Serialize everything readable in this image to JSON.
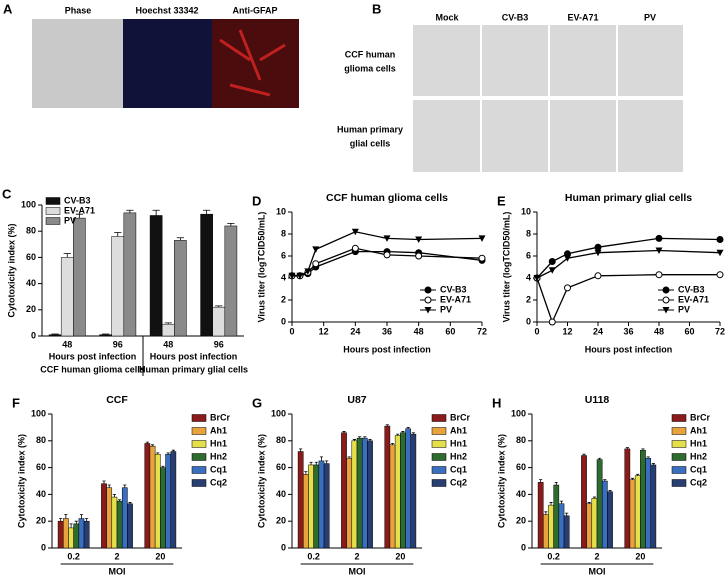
{
  "figure_panels": {
    "A": {
      "label": "A",
      "columns": [
        "Phase",
        "Hoechst 33342",
        "Anti-GFAP"
      ]
    },
    "B": {
      "label": "B",
      "columns": [
        "Mock",
        "CV-B3",
        "EV-A71",
        "PV"
      ],
      "rows": [
        [
          "CCF human",
          "glioma cells"
        ],
        [
          "Human primary",
          "glial cells"
        ]
      ]
    }
  },
  "chart_data": [
    {
      "type": "bar",
      "label": "C",
      "ylabel": "Cytotoxicity index (%)",
      "categories": [
        "48",
        "96",
        "48",
        "96"
      ],
      "group_labels": [
        "Hours post infection",
        "Hours post infection"
      ],
      "groups": [
        "CCF human glioma cells",
        "Human primary glial cells"
      ],
      "ylim": [
        0,
        100
      ],
      "yticks": [
        0,
        20,
        40,
        60,
        80,
        100
      ],
      "legend": "upper left",
      "series": [
        {
          "name": "CV-B3",
          "color": "#111111",
          "values": [
            1,
            1,
            92,
            93
          ],
          "errors": [
            0.5,
            0.5,
            4,
            3
          ]
        },
        {
          "name": "EV-A71",
          "color": "#dddddd",
          "values": [
            60,
            76,
            9,
            22
          ],
          "errors": [
            3,
            3,
            1,
            1
          ]
        },
        {
          "name": "PV",
          "color": "#8a8a8a",
          "values": [
            90,
            94,
            73,
            84
          ],
          "errors": [
            3,
            2,
            2,
            2
          ]
        }
      ]
    },
    {
      "type": "line",
      "label": "D",
      "title": "CCF human glioma cells",
      "xlabel": "Hours post infection",
      "ylabel": "Virus titer (logTCID50/mL)",
      "x": [
        0,
        3,
        6,
        9,
        24,
        36,
        48,
        72
      ],
      "xlim": [
        0,
        72
      ],
      "xticks": [
        0,
        12,
        24,
        36,
        48,
        60,
        72
      ],
      "ylim": [
        0,
        10
      ],
      "yticks": [
        0,
        2,
        4,
        6,
        8,
        10
      ],
      "legend": "lower right",
      "series": [
        {
          "name": "CV-B3",
          "color": "#000000",
          "marker": "filled circle",
          "values": [
            4.2,
            4.2,
            4.4,
            5.0,
            6.4,
            6.4,
            6.3,
            5.6
          ]
        },
        {
          "name": "EV-A71",
          "color": "#000000",
          "marker": "open circle",
          "values": [
            4.2,
            4.2,
            4.5,
            5.3,
            6.7,
            6.1,
            6.0,
            5.8
          ]
        },
        {
          "name": "PV",
          "color": "#000000",
          "marker": "triangle down",
          "values": [
            4.2,
            4.2,
            4.6,
            6.6,
            8.2,
            7.6,
            7.5,
            7.6
          ]
        }
      ]
    },
    {
      "type": "line",
      "label": "E",
      "title": "Human primary glial cells",
      "xlabel": "Hours post infection",
      "ylabel": "Virus titer (logTCID50/mL)",
      "x": [
        0,
        6,
        12,
        24,
        48,
        72
      ],
      "xlim": [
        0,
        72
      ],
      "xticks": [
        0,
        12,
        24,
        36,
        48,
        60,
        72
      ],
      "ylim": [
        0,
        10
      ],
      "yticks": [
        0,
        2,
        4,
        6,
        8,
        10
      ],
      "legend": "lower right",
      "series": [
        {
          "name": "CV-B3",
          "color": "#000000",
          "marker": "filled circle",
          "values": [
            4.0,
            5.5,
            6.2,
            6.8,
            7.6,
            7.5
          ]
        },
        {
          "name": "EV-A71",
          "color": "#000000",
          "marker": "open circle",
          "values": [
            4.0,
            0,
            3.1,
            4.2,
            4.3,
            4.3
          ]
        },
        {
          "name": "PV",
          "color": "#000000",
          "marker": "triangle down",
          "values": [
            4.0,
            4.7,
            5.8,
            6.3,
            6.5,
            6.3
          ]
        }
      ]
    },
    {
      "type": "bar",
      "label": "F",
      "title": "CCF",
      "xlabel": "MOI",
      "ylabel": "Cytotoxicity index (%)",
      "categories": [
        "0.2",
        "2",
        "20"
      ],
      "ylim": [
        0,
        100
      ],
      "yticks": [
        0,
        20,
        40,
        60,
        80,
        100
      ],
      "legend": "right",
      "series": [
        {
          "name": "BrCr",
          "color": "#8b1a1a",
          "values": [
            20,
            48,
            78
          ],
          "errors": [
            2,
            2,
            1
          ]
        },
        {
          "name": "Ah1",
          "color": "#e8a33c",
          "values": [
            22,
            45,
            76
          ],
          "errors": [
            3,
            2,
            1
          ]
        },
        {
          "name": "Hn1",
          "color": "#e5e04a",
          "values": [
            15,
            38,
            70
          ],
          "errors": [
            3,
            2,
            1
          ]
        },
        {
          "name": "Hn2",
          "color": "#2e6b2e",
          "values": [
            18,
            35,
            60
          ],
          "errors": [
            2,
            1,
            1
          ]
        },
        {
          "name": "Cq1",
          "color": "#3a6fbf",
          "values": [
            22,
            45,
            70
          ],
          "errors": [
            3,
            2,
            1
          ]
        },
        {
          "name": "Cq2",
          "color": "#283d70",
          "values": [
            20,
            33,
            72
          ],
          "errors": [
            2,
            1,
            1
          ]
        }
      ]
    },
    {
      "type": "bar",
      "label": "G",
      "title": "U87",
      "xlabel": "MOI",
      "ylabel": "Cytotoxicity index (%)",
      "categories": [
        "0.2",
        "2",
        "20"
      ],
      "ylim": [
        0,
        100
      ],
      "yticks": [
        0,
        20,
        40,
        60,
        80,
        100
      ],
      "legend": "right",
      "series": [
        {
          "name": "BrCr",
          "color": "#8b1a1a",
          "values": [
            72,
            86,
            91
          ],
          "errors": [
            2,
            1,
            1
          ]
        },
        {
          "name": "Ah1",
          "color": "#e8a33c",
          "values": [
            55,
            67,
            77
          ],
          "errors": [
            2,
            1,
            1
          ]
        },
        {
          "name": "Hn1",
          "color": "#e5e04a",
          "values": [
            62,
            80,
            84
          ],
          "errors": [
            2,
            1,
            1
          ]
        },
        {
          "name": "Hn2",
          "color": "#2e6b2e",
          "values": [
            62,
            82,
            86
          ],
          "errors": [
            2,
            1,
            1
          ]
        },
        {
          "name": "Cq1",
          "color": "#3a6fbf",
          "values": [
            65,
            82,
            89
          ],
          "errors": [
            3,
            1,
            1
          ]
        },
        {
          "name": "Cq2",
          "color": "#283d70",
          "values": [
            63,
            80,
            85
          ],
          "errors": [
            2,
            1,
            1
          ]
        }
      ]
    },
    {
      "type": "bar",
      "label": "H",
      "title": "U118",
      "xlabel": "MOI",
      "ylabel": "Cytotoxicity index (%)",
      "categories": [
        "0.2",
        "2",
        "20"
      ],
      "ylim": [
        0,
        100
      ],
      "yticks": [
        0,
        20,
        40,
        60,
        80,
        100
      ],
      "legend": "right",
      "series": [
        {
          "name": "BrCr",
          "color": "#8b1a1a",
          "values": [
            49,
            69,
            74
          ],
          "errors": [
            2,
            1,
            1
          ]
        },
        {
          "name": "Ah1",
          "color": "#e8a33c",
          "values": [
            25,
            33,
            51
          ],
          "errors": [
            2,
            1,
            1
          ]
        },
        {
          "name": "Hn1",
          "color": "#e5e04a",
          "values": [
            32,
            37,
            54
          ],
          "errors": [
            2,
            1,
            1
          ]
        },
        {
          "name": "Hn2",
          "color": "#2e6b2e",
          "values": [
            47,
            66,
            73
          ],
          "errors": [
            2,
            1,
            1
          ]
        },
        {
          "name": "Cq1",
          "color": "#3a6fbf",
          "values": [
            33,
            50,
            67
          ],
          "errors": [
            2,
            1,
            1
          ]
        },
        {
          "name": "Cq2",
          "color": "#283d70",
          "values": [
            24,
            42,
            62
          ],
          "errors": [
            2,
            1,
            1
          ]
        }
      ]
    }
  ]
}
